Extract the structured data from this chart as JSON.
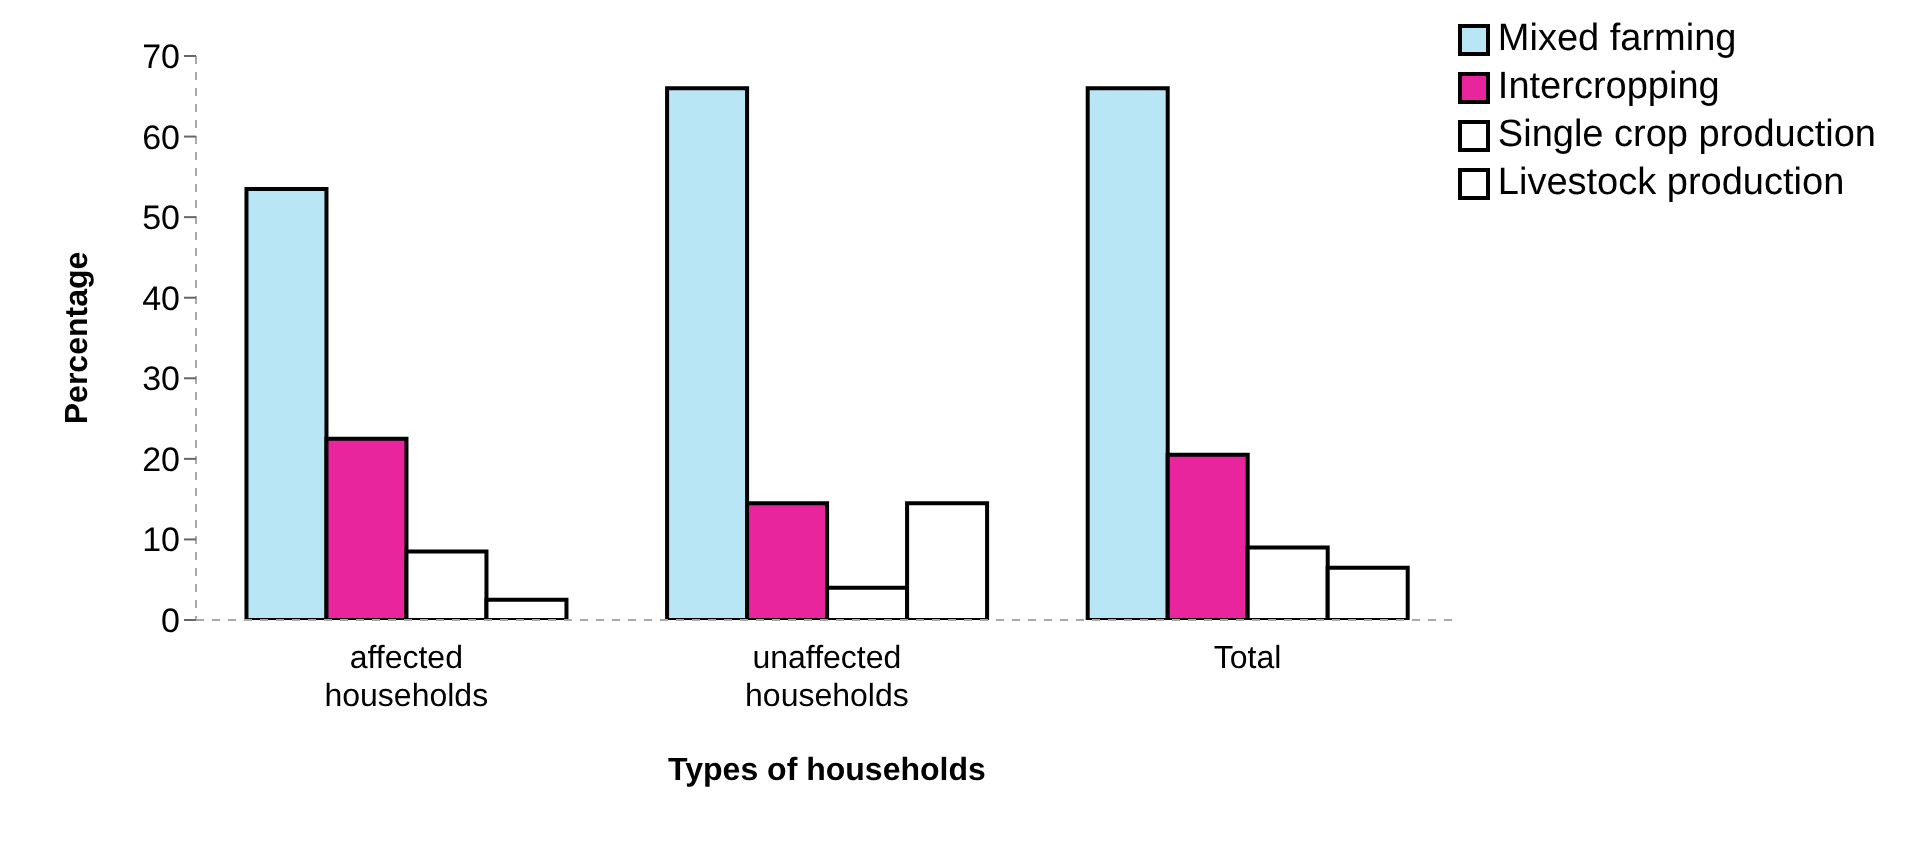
{
  "chart_data": {
    "type": "bar",
    "xlabel": "Types of households",
    "ylabel": "Percentage",
    "categories": [
      "affected households",
      "unaffected households",
      "Total"
    ],
    "series": [
      {
        "name": "Mixed farming",
        "color": "#b8e6f4",
        "values": [
          53.5,
          66,
          66
        ]
      },
      {
        "name": "Intercropping",
        "color": "#e8259c",
        "values": [
          22.5,
          14.5,
          20.5
        ]
      },
      {
        "name": "Single crop production",
        "color": "#ffffff",
        "values": [
          8.5,
          4,
          9
        ]
      },
      {
        "name": "Livestock production",
        "color": "#ffffff",
        "values": [
          2.5,
          14.5,
          6.5
        ]
      }
    ],
    "ylim": [
      0,
      70
    ],
    "yticks": [
      0,
      10,
      20,
      30,
      40,
      50,
      60,
      70
    ],
    "grid": false,
    "legend": "top right"
  }
}
